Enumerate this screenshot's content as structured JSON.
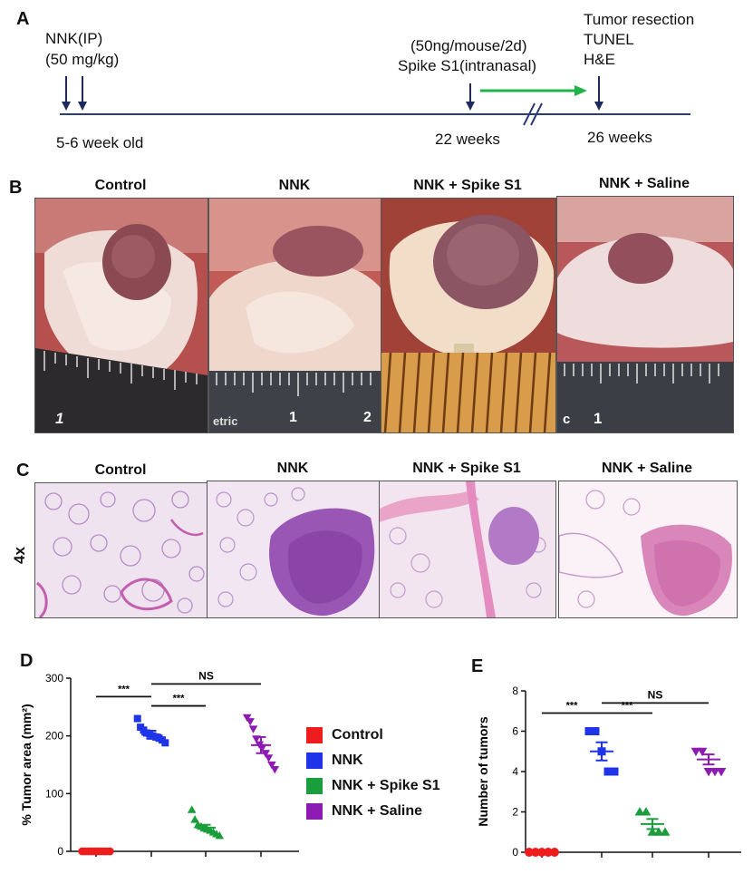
{
  "panels": {
    "a": "A",
    "b": "B",
    "c": "C",
    "d": "D",
    "e": "E"
  },
  "timeline": {
    "nnk_label": "NNK(IP)",
    "nnk_dose": "(50 mg/kg)",
    "spike_dose": "(50ng/mouse/2d)",
    "spike_label": "Spike S1(intranasal)",
    "endpoint_lines": [
      "Tumor resection",
      "TUNEL",
      "H&E"
    ],
    "start_label": "5-6 week old",
    "mid_label": "22 weeks",
    "end_label": "26 weeks"
  },
  "photos": {
    "labels": [
      "Control",
      "NNK",
      "NNK + Spike S1",
      "NNK + Saline"
    ],
    "ruler_text": [
      "1",
      "etric",
      "1",
      "2",
      "c",
      "1"
    ]
  },
  "histology": {
    "labels": [
      "Control",
      "NNK",
      "NNK + Spike S1",
      "NNK + Saline"
    ],
    "magnification": "4x"
  },
  "legend": {
    "items": [
      {
        "label": "Control",
        "color": "#ee1c1c"
      },
      {
        "label": "NNK",
        "color": "#1f34e8"
      },
      {
        "label": "NNK + Spike S1",
        "color": "#1a9e3c"
      },
      {
        "label": "NNK + Saline",
        "color": "#8d1bb3"
      }
    ]
  },
  "chart_data": [
    {
      "type": "scatter",
      "panel": "D",
      "ylabel": "% Tumor area (mm²)",
      "ylim": [
        0,
        300
      ],
      "yticks": [
        0,
        100,
        200,
        300
      ],
      "groups": [
        "Control",
        "NNK",
        "NNK + Spike S1",
        "NNK + Saline"
      ],
      "colors": [
        "#ee1c1c",
        "#1f34e8",
        "#1a9e3c",
        "#8d1bb3"
      ],
      "markers": [
        "circle",
        "square",
        "triangle",
        "inverted-triangle"
      ],
      "means": [
        0,
        202,
        41,
        184
      ],
      "sems": [
        0,
        7,
        5,
        14
      ],
      "points": [
        [
          0,
          0,
          0,
          0,
          0,
          0,
          0,
          0,
          0,
          0
        ],
        [
          230,
          215,
          210,
          205,
          203,
          200,
          198,
          196,
          193,
          188
        ],
        [
          72,
          55,
          46,
          43,
          40,
          38,
          36,
          33,
          30,
          27
        ],
        [
          232,
          225,
          212,
          195,
          185,
          180,
          170,
          162,
          150,
          142
        ]
      ],
      "significance": [
        {
          "from": 0,
          "to": 1,
          "y": 268,
          "text": "***"
        },
        {
          "from": 1,
          "to": 2,
          "y": 252,
          "text": "***"
        },
        {
          "from": 1,
          "to": 3,
          "y": 290,
          "text": "NS"
        }
      ]
    },
    {
      "type": "scatter",
      "panel": "E",
      "ylabel": "Number of tumors",
      "ylim": [
        0,
        8
      ],
      "yticks": [
        0,
        2,
        4,
        6,
        8
      ],
      "groups": [
        "Control",
        "NNK",
        "NNK + Spike S1",
        "NNK + Saline"
      ],
      "colors": [
        "#ee1c1c",
        "#1f34e8",
        "#1a9e3c",
        "#8d1bb3"
      ],
      "markers": [
        "circle",
        "square",
        "triangle",
        "inverted-triangle"
      ],
      "means": [
        0,
        5.0,
        1.4,
        4.6
      ],
      "sems": [
        0,
        0.45,
        0.25,
        0.25
      ],
      "points": [
        [
          0,
          0,
          0,
          0,
          0
        ],
        [
          6,
          6,
          5,
          4,
          4
        ],
        [
          2,
          2,
          1,
          1,
          1
        ],
        [
          5,
          5,
          4,
          4,
          4
        ]
      ],
      "significance": [
        {
          "from": 0,
          "to": 1,
          "y": 6.9,
          "text": "***"
        },
        {
          "from": 1,
          "to": 2,
          "y": 6.9,
          "text": "***"
        },
        {
          "from": 1,
          "to": 3,
          "y": 7.4,
          "text": "NS"
        }
      ]
    }
  ]
}
